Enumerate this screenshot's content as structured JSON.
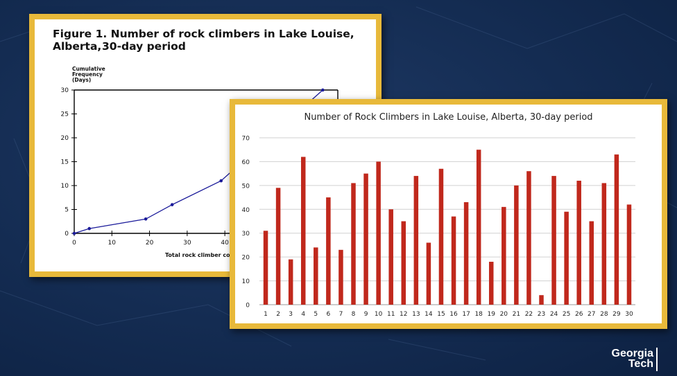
{
  "logo": {
    "line1": "Georgia",
    "line2": "Tech"
  },
  "chart_data": [
    {
      "type": "line",
      "title_line1": "Figure 1. Number of rock climbers in Lake Louise, Alberta,",
      "title_line2": "30-day period",
      "ylabel_lines": [
        "Cumulative",
        "Frequency",
        "(Days)"
      ],
      "xlabel": "Total rock climber count",
      "xticks": [
        0,
        10,
        20,
        30,
        40
      ],
      "yticks": [
        0,
        5,
        10,
        15,
        20,
        25,
        30
      ],
      "xlim": [
        0,
        70
      ],
      "ylim": [
        0,
        30
      ],
      "points": [
        [
          0,
          0
        ],
        [
          4,
          1
        ],
        [
          19,
          3
        ],
        [
          26,
          6
        ],
        [
          39,
          11
        ],
        [
          66,
          30
        ]
      ],
      "line_color": "#1b1b9a"
    },
    {
      "type": "bar",
      "title": "Number of Rock Climbers in Lake Louise, Alberta, 30-day period",
      "categories": [
        "1",
        "2",
        "3",
        "4",
        "5",
        "6",
        "7",
        "8",
        "9",
        "10",
        "11",
        "12",
        "13",
        "14",
        "15",
        "16",
        "17",
        "18",
        "19",
        "20",
        "21",
        "22",
        "23",
        "24",
        "25",
        "26",
        "27",
        "28",
        "29",
        "30"
      ],
      "values": [
        31,
        49,
        19,
        62,
        24,
        45,
        23,
        51,
        55,
        60,
        40,
        35,
        54,
        26,
        57,
        37,
        43,
        65,
        18,
        41,
        50,
        56,
        4,
        54,
        39,
        52,
        35,
        51,
        63,
        42
      ],
      "yticks": [
        0,
        10,
        20,
        30,
        40,
        50,
        60,
        70
      ],
      "ylim": [
        0,
        70
      ],
      "grid": true,
      "bar_color": "#c0281c"
    }
  ]
}
